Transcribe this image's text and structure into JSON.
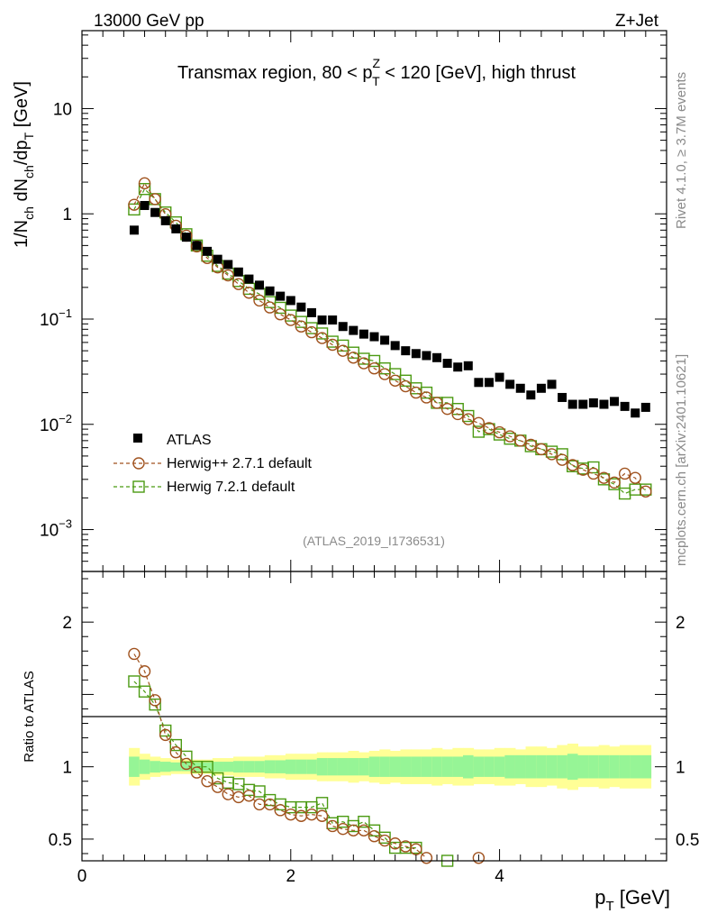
{
  "header": {
    "energy_label": "13000 GeV pp",
    "process_label": "Z+Jet",
    "side_rivet": "Rivet 4.1.0, ≥ 3.7M events",
    "side_mcplots": "mcplots.cern.ch [arXiv:2401.10621]",
    "analysis_id": "(ATLAS_2019_I1736531)"
  },
  "colors": {
    "atlas": "#000000",
    "herwigpp": "#a0521e",
    "herwig7": "#4b9a12",
    "band_inner": "#96f596",
    "band_outer": "#ffff96"
  },
  "chart_data": [
    {
      "type": "scatter",
      "panel": "main",
      "title_parts": [
        "Transmax region, 80 < p",
        "Z",
        "T",
        " < 120 [GeV], high thrust"
      ],
      "ylabel_parts": [
        "1/N",
        "ch",
        " dN",
        "ch",
        "/dp",
        "T",
        " [GeV]"
      ],
      "yscale": "log",
      "xlim": [
        0,
        5.6
      ],
      "ylim": [
        0.0004,
        55
      ],
      "y_tick_labels": [
        {
          "value": 0.001,
          "base": "10",
          "exp": "−3"
        },
        {
          "value": 0.01,
          "base": "10",
          "exp": "−2"
        },
        {
          "value": 0.1,
          "base": "10",
          "exp": "−1"
        },
        {
          "value": 1,
          "base": "1",
          "exp": ""
        },
        {
          "value": 10,
          "base": "10",
          "exp": ""
        }
      ],
      "x": [
        0.5,
        0.6,
        0.7,
        0.8,
        0.9,
        1.0,
        1.1,
        1.2,
        1.3,
        1.4,
        1.5,
        1.6,
        1.7,
        1.8,
        1.9,
        2.0,
        2.1,
        2.2,
        2.3,
        2.4,
        2.5,
        2.6,
        2.7,
        2.8,
        2.9,
        3.0,
        3.1,
        3.2,
        3.3,
        3.4,
        3.5,
        3.6,
        3.7,
        3.8,
        3.9,
        4.0,
        4.1,
        4.2,
        4.3,
        4.4,
        4.5,
        4.6,
        4.7,
        4.8,
        4.9,
        5.0,
        5.1,
        5.2,
        5.3,
        5.4
      ],
      "series": [
        {
          "name": "ATLAS",
          "marker": "filled-square",
          "values": [
            0.7,
            1.2,
            1.03,
            0.86,
            0.72,
            0.6,
            0.5,
            0.44,
            0.37,
            0.33,
            0.28,
            0.24,
            0.21,
            0.185,
            0.165,
            0.15,
            0.13,
            0.115,
            0.098,
            0.098,
            0.085,
            0.078,
            0.072,
            0.068,
            0.063,
            0.056,
            0.05,
            0.047,
            0.045,
            0.043,
            0.038,
            0.035,
            0.036,
            0.025,
            0.025,
            0.028,
            0.024,
            0.022,
            0.019,
            0.022,
            0.024,
            0.018,
            0.0155,
            0.0155,
            0.016,
            0.0155,
            0.0165,
            0.0148,
            0.0128,
            0.0145
          ]
        },
        {
          "name": "Herwig++ 2.7.1 default",
          "marker": "open-circle",
          "values": [
            1.22,
            1.95,
            1.38,
            0.99,
            0.77,
            0.62,
            0.49,
            0.38,
            0.31,
            0.26,
            0.215,
            0.178,
            0.15,
            0.129,
            0.111,
            0.098,
            0.085,
            0.075,
            0.066,
            0.057,
            0.05,
            0.043,
            0.038,
            0.034,
            0.03,
            0.026,
            0.023,
            0.02,
            0.018,
            0.016,
            0.014,
            0.0125,
            0.0112,
            0.0103,
            0.0092,
            0.0084,
            0.0077,
            0.007,
            0.0064,
            0.0058,
            0.0052,
            0.0046,
            0.0041,
            0.0037,
            0.0034,
            0.0031,
            0.0028,
            0.0034,
            0.0031,
            0.0023
          ]
        },
        {
          "name": "Herwig 7.2.1 default",
          "marker": "open-square",
          "values": [
            1.1,
            1.72,
            1.38,
            1.03,
            0.83,
            0.64,
            0.5,
            0.4,
            0.32,
            0.27,
            0.23,
            0.194,
            0.173,
            0.145,
            0.128,
            0.108,
            0.094,
            0.082,
            0.073,
            0.061,
            0.056,
            0.048,
            0.042,
            0.04,
            0.034,
            0.03,
            0.026,
            0.022,
            0.02,
            0.016,
            0.016,
            0.014,
            0.012,
            0.0085,
            0.009,
            0.008,
            0.0073,
            0.007,
            0.0062,
            0.0058,
            0.0055,
            0.0052,
            0.004,
            0.0038,
            0.0039,
            0.003,
            0.0027,
            0.0022,
            0.0024,
            0.0024
          ]
        }
      ],
      "legend_position": "center-left"
    },
    {
      "type": "scatter",
      "panel": "ratio",
      "ylabel": "Ratio to ATLAS",
      "xlabel_parts": [
        "p",
        "T",
        " [GeV]"
      ],
      "xlim": [
        0,
        5.6
      ],
      "ylim": [
        0.35,
        2.35
      ],
      "x_tick_labels": [
        {
          "value": 0,
          "label": "0"
        },
        {
          "value": 2,
          "label": "2"
        },
        {
          "value": 4,
          "label": "4"
        }
      ],
      "y_tick_labels": [
        {
          "value": 0.5,
          "label": "0.5"
        },
        {
          "value": 1,
          "label": "1"
        },
        {
          "value": 2,
          "label": "2"
        }
      ],
      "reference_line": 1,
      "band": {
        "x": [
          0.5,
          0.6,
          0.7,
          0.8,
          0.9,
          1.0,
          1.1,
          1.2,
          1.3,
          1.4,
          1.5,
          1.6,
          1.7,
          1.8,
          1.9,
          2.0,
          2.1,
          2.2,
          2.3,
          2.4,
          2.5,
          2.6,
          2.7,
          2.8,
          2.9,
          3.0,
          3.1,
          3.2,
          3.3,
          3.4,
          3.5,
          3.6,
          3.7,
          3.8,
          3.9,
          4.0,
          4.1,
          4.2,
          4.3,
          4.4,
          4.5,
          4.6,
          4.7,
          4.8,
          4.9,
          5.0,
          5.1,
          5.2,
          5.3,
          5.4
        ],
        "inner_halfwidth": [
          0.07,
          0.05,
          0.04,
          0.035,
          0.03,
          0.03,
          0.03,
          0.03,
          0.035,
          0.035,
          0.04,
          0.04,
          0.04,
          0.045,
          0.045,
          0.05,
          0.05,
          0.05,
          0.06,
          0.06,
          0.06,
          0.06,
          0.06,
          0.07,
          0.07,
          0.07,
          0.07,
          0.07,
          0.07,
          0.07,
          0.07,
          0.07,
          0.08,
          0.07,
          0.07,
          0.07,
          0.08,
          0.08,
          0.08,
          0.08,
          0.08,
          0.08,
          0.09,
          0.08,
          0.08,
          0.08,
          0.08,
          0.08,
          0.08,
          0.08
        ],
        "outer_halfwidth": [
          0.13,
          0.09,
          0.07,
          0.06,
          0.05,
          0.05,
          0.05,
          0.05,
          0.06,
          0.06,
          0.07,
          0.07,
          0.07,
          0.08,
          0.08,
          0.09,
          0.09,
          0.09,
          0.1,
          0.1,
          0.1,
          0.11,
          0.1,
          0.11,
          0.12,
          0.11,
          0.12,
          0.12,
          0.12,
          0.13,
          0.12,
          0.13,
          0.13,
          0.12,
          0.12,
          0.13,
          0.13,
          0.12,
          0.14,
          0.14,
          0.13,
          0.15,
          0.16,
          0.14,
          0.14,
          0.15,
          0.14,
          0.15,
          0.15,
          0.15
        ]
      },
      "series": [
        {
          "name": "Herwig++ 2.7.1 default",
          "marker": "open-circle",
          "x": [
            0.5,
            0.6,
            0.7,
            0.8,
            0.9,
            1.0,
            1.1,
            1.2,
            1.3,
            1.4,
            1.5,
            1.6,
            1.7,
            1.8,
            1.9,
            2.0,
            2.1,
            2.2,
            2.3,
            2.4,
            2.5,
            2.6,
            2.7,
            2.8,
            2.9,
            3.0,
            3.1,
            3.2,
            3.3,
            3.8
          ],
          "values": [
            1.78,
            1.66,
            1.46,
            1.22,
            1.1,
            1.02,
            0.96,
            0.9,
            0.86,
            0.81,
            0.79,
            0.8,
            0.74,
            0.74,
            0.7,
            0.67,
            0.66,
            0.67,
            0.66,
            0.59,
            0.57,
            0.56,
            0.56,
            0.52,
            0.49,
            0.47,
            0.45,
            0.43,
            0.37,
            0.37
          ]
        },
        {
          "name": "Herwig 7.2.1 default",
          "marker": "open-square",
          "x": [
            0.5,
            0.6,
            0.7,
            0.8,
            0.9,
            1.0,
            1.1,
            1.2,
            1.3,
            1.4,
            1.5,
            1.6,
            1.7,
            1.8,
            1.9,
            2.0,
            2.1,
            2.2,
            2.3,
            2.4,
            2.5,
            2.6,
            2.7,
            2.8,
            2.9,
            3.0,
            3.1,
            3.2,
            3.5
          ],
          "values": [
            1.59,
            1.52,
            1.43,
            1.25,
            1.15,
            1.07,
            1.0,
            1.0,
            0.92,
            0.89,
            0.88,
            0.84,
            0.83,
            0.77,
            0.74,
            0.72,
            0.72,
            0.72,
            0.75,
            0.61,
            0.62,
            0.59,
            0.62,
            0.56,
            0.51,
            0.44,
            0.44,
            0.44,
            0.35
          ]
        }
      ]
    }
  ]
}
